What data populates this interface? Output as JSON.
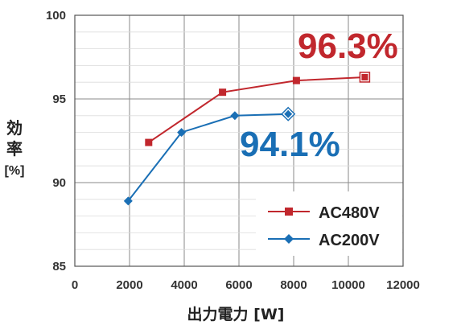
{
  "chart_data": {
    "type": "line",
    "title": "",
    "xlabel": "出力電力 [W]",
    "ylabel": "効率",
    "ylabel_unit": "[%]",
    "xlim": [
      0,
      12000
    ],
    "ylim": [
      85,
      100
    ],
    "xticks": [
      0,
      2000,
      4000,
      6000,
      8000,
      10000,
      12000
    ],
    "yticks": [
      85,
      90,
      95,
      100
    ],
    "grid": true,
    "legend_position": "bottom-right",
    "series": [
      {
        "name": "AC480V",
        "color": "#c1272d",
        "marker": "square",
        "x": [
          2700,
          5400,
          8100,
          10600
        ],
        "y": [
          92.4,
          95.4,
          96.1,
          96.3
        ],
        "peak_label": "96.3%"
      },
      {
        "name": "AC200V",
        "color": "#1a6fb5",
        "marker": "diamond",
        "x": [
          1950,
          3900,
          5850,
          7800
        ],
        "y": [
          88.9,
          93.0,
          94.0,
          94.1
        ],
        "peak_label": "94.1%"
      }
    ]
  }
}
